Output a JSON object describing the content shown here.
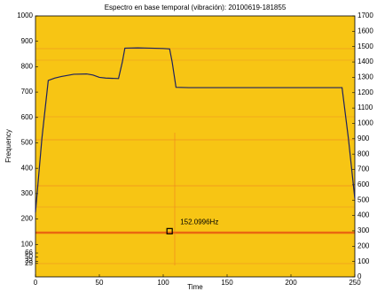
{
  "chart_data": {
    "type": "line",
    "title": "Espectro en base temporal (vibración): 20100619-181855",
    "x_label": "Time",
    "y_label": "Frequency",
    "xlim": [
      0,
      250
    ],
    "xticks": [
      0,
      50,
      100,
      150,
      200,
      250
    ],
    "ylim": [
      -28,
      1000
    ],
    "yticks": [
      25,
      33,
      50,
      66,
      100,
      200,
      300,
      400,
      500,
      600,
      700,
      800,
      900,
      1000
    ],
    "y2lim": [
      0,
      1700
    ],
    "y2ticks": [
      0,
      100,
      200,
      300,
      400,
      500,
      600,
      700,
      800,
      900,
      1000,
      1100,
      1200,
      1300,
      1400,
      1500,
      1600,
      1700
    ],
    "series": [
      {
        "color": "#1c2160",
        "axis": "y2",
        "x": [
          0,
          5,
          10,
          15,
          20,
          30,
          40,
          45,
          50,
          55,
          65,
          68,
          70,
          80,
          90,
          100,
          105,
          107,
          110,
          120,
          150,
          200,
          240,
          245,
          250
        ],
        "values": [
          420,
          900,
          1280,
          1295,
          1305,
          1320,
          1322,
          1315,
          1300,
          1295,
          1292,
          1400,
          1490,
          1492,
          1490,
          1488,
          1485,
          1400,
          1235,
          1233,
          1233,
          1233,
          1233,
          900,
          510
        ]
      }
    ],
    "annotation": {
      "text": "152.0996Hz",
      "x": 105,
      "y": 152
    }
  }
}
